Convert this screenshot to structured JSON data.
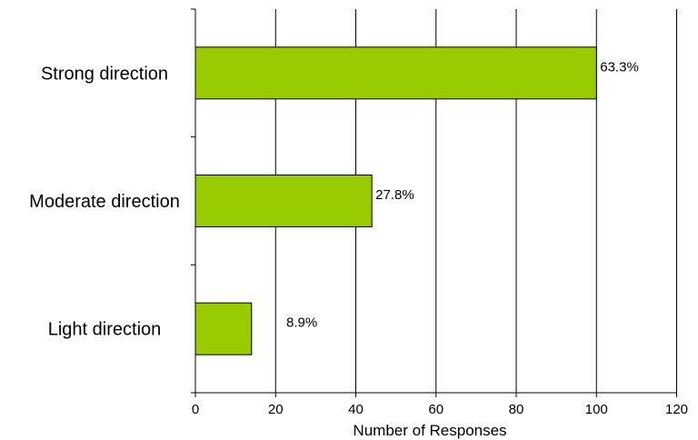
{
  "chart_data": {
    "type": "bar",
    "orientation": "horizontal",
    "categories": [
      "Strong direction",
      "Moderate direction",
      "Light direction"
    ],
    "values": [
      100,
      44,
      14
    ],
    "data_labels": [
      "63.3%",
      "27.8%",
      "8.9%"
    ],
    "title": "",
    "xlabel": "Number of Responses",
    "ylabel": "",
    "xlim": [
      0,
      120
    ],
    "x_ticks": [
      0,
      20,
      40,
      60,
      80,
      100,
      120
    ],
    "x_tick_labels": [
      "0",
      "20",
      "40",
      "60",
      "80",
      "100",
      "120"
    ],
    "grid": "vertical",
    "legend": "none",
    "bar_color": "#99CC00"
  }
}
